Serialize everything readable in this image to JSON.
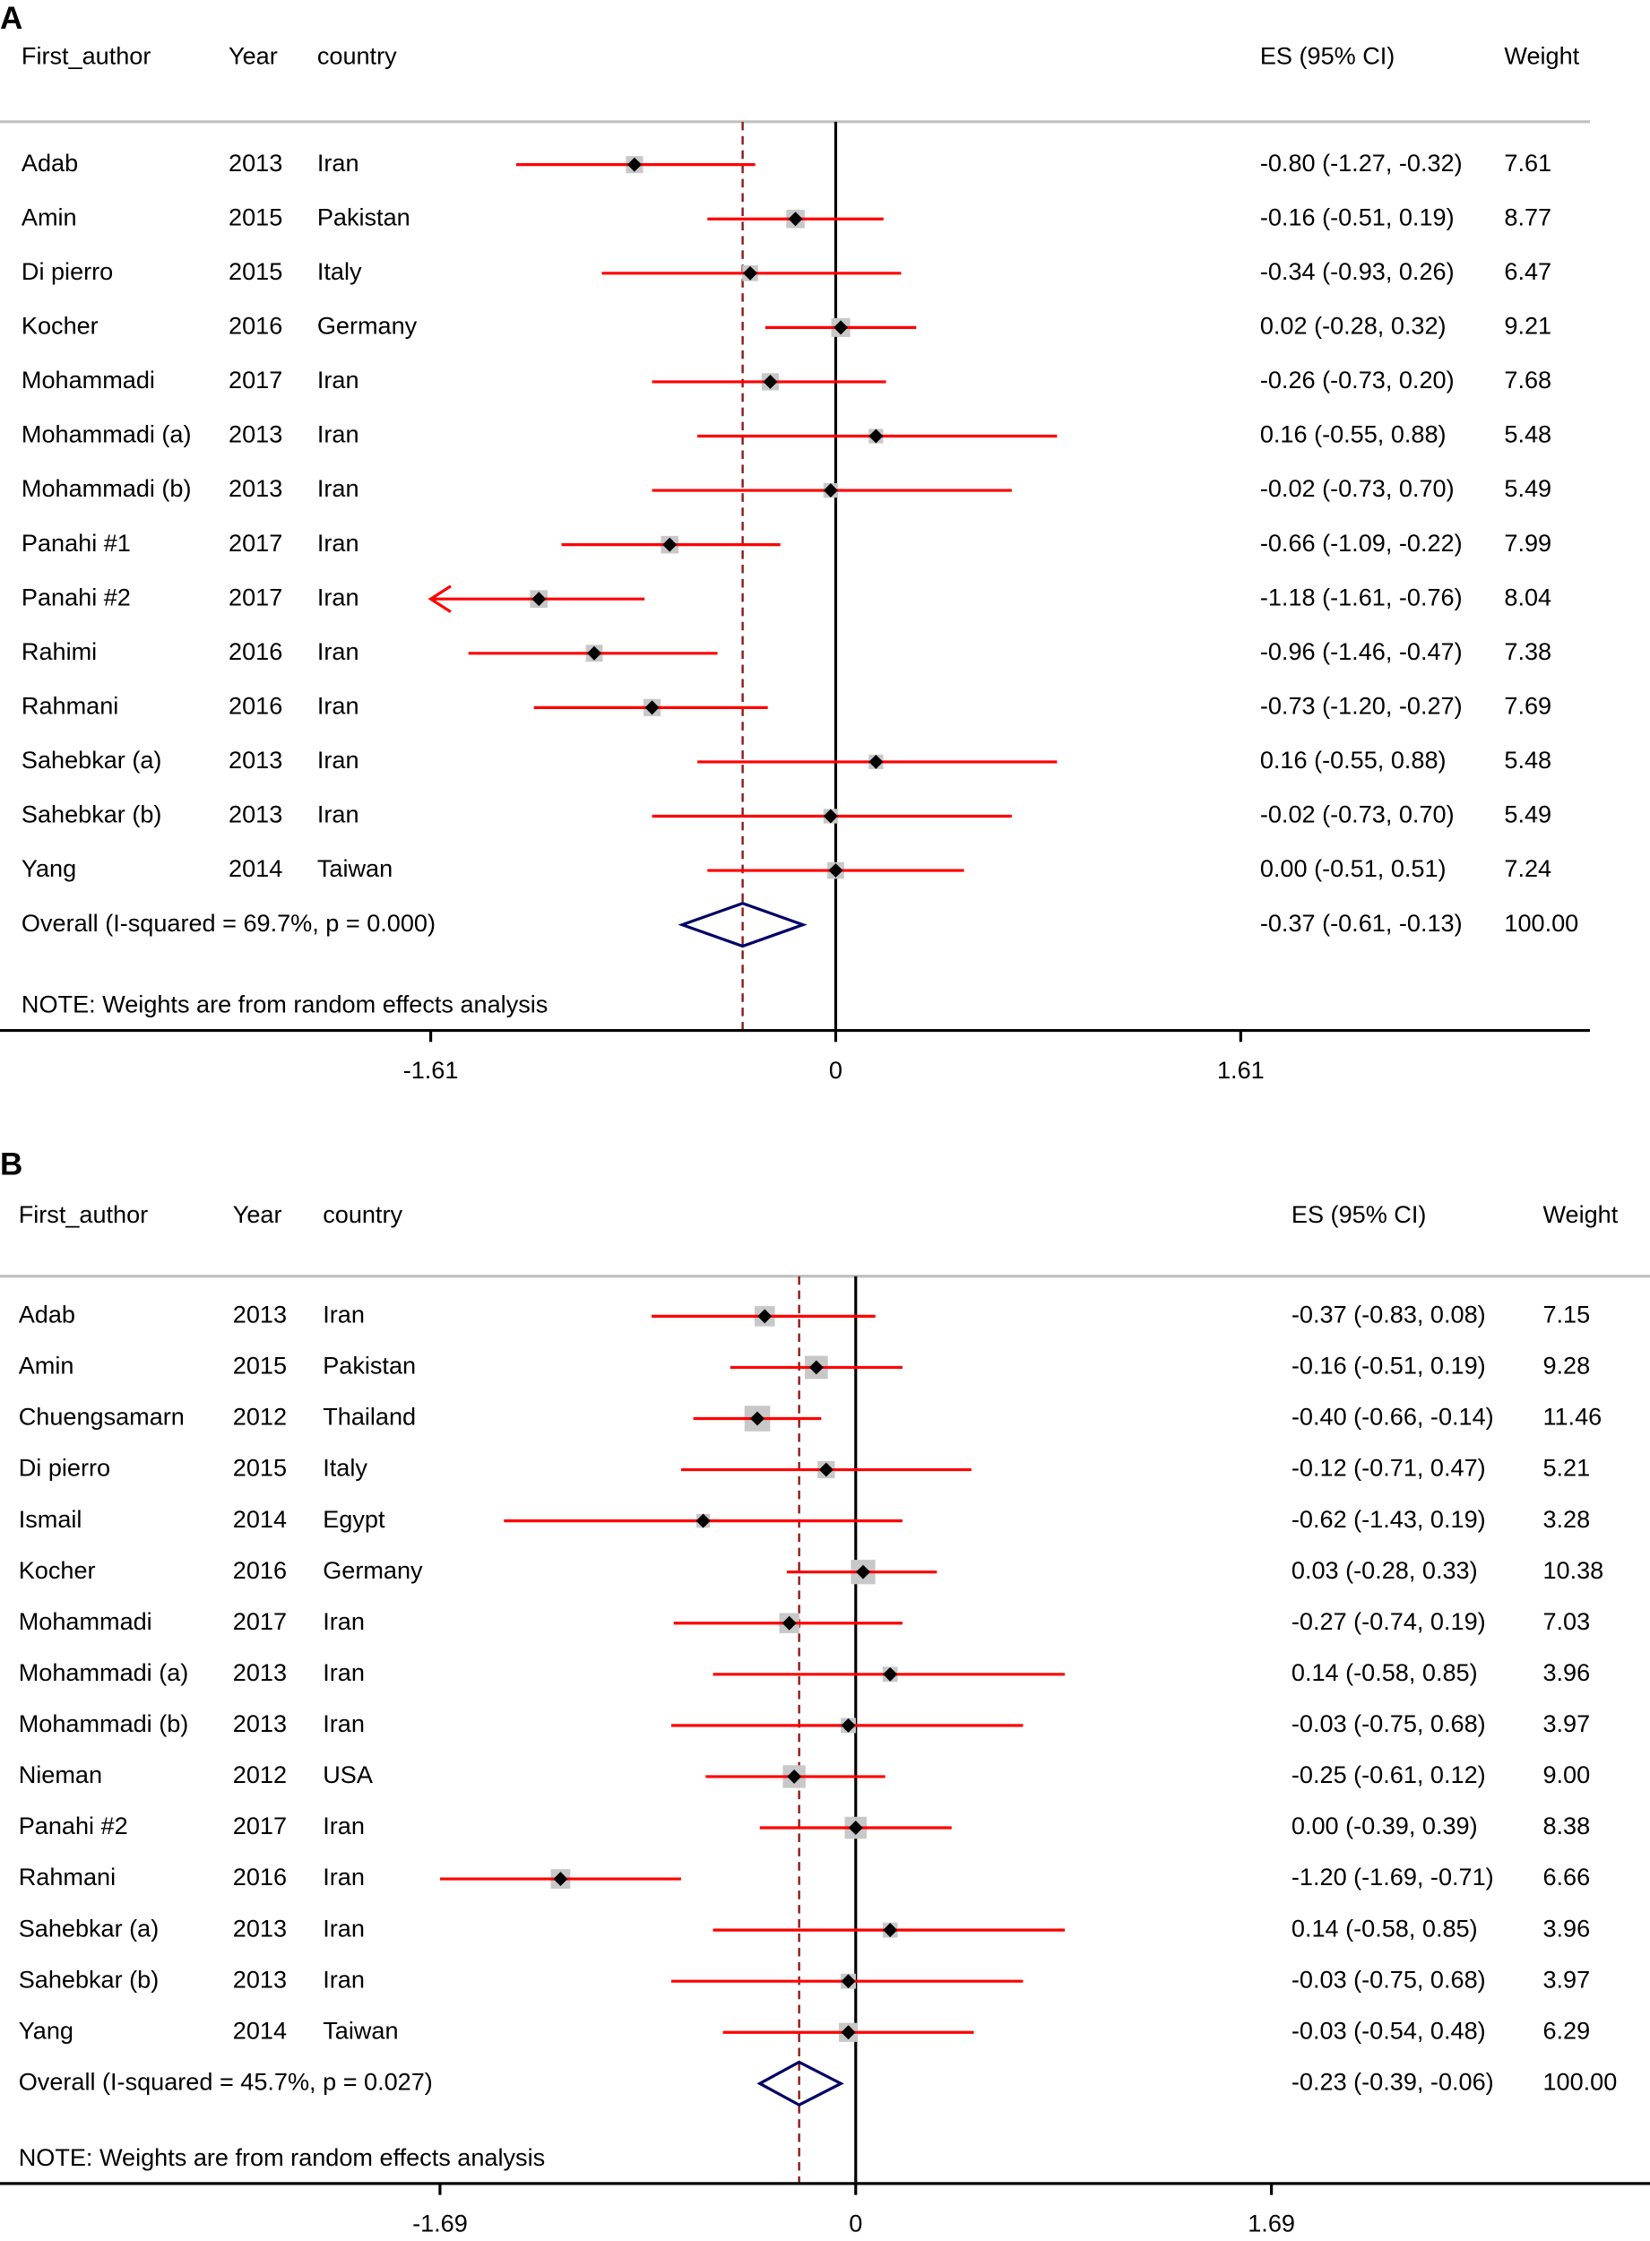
{
  "chart_data": [
    {
      "type": "forest",
      "panel_label": "A",
      "columns": {
        "author": "First_author",
        "year": "Year",
        "country": "country",
        "es": "ES (95% CI)",
        "weight": "Weight"
      },
      "rows": [
        {
          "author": "Adab",
          "year": "2013",
          "country": "Iran",
          "es": -0.8,
          "lo": -1.27,
          "hi": -0.32,
          "es_text": "-0.80 (-1.27, -0.32)",
          "weight": "7.61"
        },
        {
          "author": "Amin",
          "year": "2015",
          "country": "Pakistan",
          "es": -0.16,
          "lo": -0.51,
          "hi": 0.19,
          "es_text": "-0.16 (-0.51, 0.19)",
          "weight": "8.77"
        },
        {
          "author": "Di pierro",
          "year": "2015",
          "country": "Italy",
          "es": -0.34,
          "lo": -0.93,
          "hi": 0.26,
          "es_text": "-0.34 (-0.93, 0.26)",
          "weight": "6.47"
        },
        {
          "author": "Kocher",
          "year": "2016",
          "country": "Germany",
          "es": 0.02,
          "lo": -0.28,
          "hi": 0.32,
          "es_text": "0.02 (-0.28, 0.32)",
          "weight": "9.21"
        },
        {
          "author": "Mohammadi",
          "year": "2017",
          "country": "Iran",
          "es": -0.26,
          "lo": -0.73,
          "hi": 0.2,
          "es_text": "-0.26 (-0.73, 0.20)",
          "weight": "7.68"
        },
        {
          "author": "Mohammadi (a)",
          "year": "2013",
          "country": "Iran",
          "es": 0.16,
          "lo": -0.55,
          "hi": 0.88,
          "es_text": "0.16 (-0.55, 0.88)",
          "weight": "5.48"
        },
        {
          "author": "Mohammadi (b)",
          "year": "2013",
          "country": "Iran",
          "es": -0.02,
          "lo": -0.73,
          "hi": 0.7,
          "es_text": "-0.02 (-0.73, 0.70)",
          "weight": "5.49"
        },
        {
          "author": "Panahi #1",
          "year": "2017",
          "country": "Iran",
          "es": -0.66,
          "lo": -1.09,
          "hi": -0.22,
          "es_text": "-0.66 (-1.09, -0.22)",
          "weight": "7.99"
        },
        {
          "author": "Panahi #2",
          "year": "2017",
          "country": "Iran",
          "es": -1.18,
          "lo": -1.61,
          "hi": -0.76,
          "es_text": "-1.18 (-1.61, -0.76)",
          "weight": "8.04"
        },
        {
          "author": "Rahimi",
          "year": "2016",
          "country": "Iran",
          "es": -0.96,
          "lo": -1.46,
          "hi": -0.47,
          "es_text": "-0.96 (-1.46, -0.47)",
          "weight": "7.38"
        },
        {
          "author": "Rahmani",
          "year": "2016",
          "country": "Iran",
          "es": -0.73,
          "lo": -1.2,
          "hi": -0.27,
          "es_text": "-0.73 (-1.20, -0.27)",
          "weight": "7.69"
        },
        {
          "author": "Sahebkar (a)",
          "year": "2013",
          "country": "Iran",
          "es": 0.16,
          "lo": -0.55,
          "hi": 0.88,
          "es_text": "0.16 (-0.55, 0.88)",
          "weight": "5.48"
        },
        {
          "author": "Sahebkar (b)",
          "year": "2013",
          "country": "Iran",
          "es": -0.02,
          "lo": -0.73,
          "hi": 0.7,
          "es_text": "-0.02 (-0.73, 0.70)",
          "weight": "5.49"
        },
        {
          "author": "Yang",
          "year": "2014",
          "country": "Taiwan",
          "es": 0.0,
          "lo": -0.51,
          "hi": 0.51,
          "es_text": "0.00 (-0.51, 0.51)",
          "weight": "7.24"
        }
      ],
      "overall": {
        "label": "Overall  (I-squared = 69.7%, p = 0.000)",
        "es": -0.37,
        "lo": -0.61,
        "hi": -0.13,
        "es_text": "-0.37 (-0.61, -0.13)",
        "weight": "100.00"
      },
      "note": "NOTE: Weights are from random effects analysis",
      "xlim": [
        -1.61,
        1.61
      ],
      "ticks": [
        -1.61,
        0,
        1.61
      ],
      "tick_labels": [
        "-1.61",
        "0",
        "1.61"
      ]
    },
    {
      "type": "forest",
      "panel_label": "B",
      "columns": {
        "author": "First_author",
        "year": "Year",
        "country": "country",
        "es": "ES (95% CI)",
        "weight": "Weight"
      },
      "rows": [
        {
          "author": "Adab",
          "year": "2013",
          "country": "Iran",
          "es": -0.37,
          "lo": -0.83,
          "hi": 0.08,
          "es_text": "-0.37 (-0.83, 0.08)",
          "weight": "7.15"
        },
        {
          "author": "Amin",
          "year": "2015",
          "country": "Pakistan",
          "es": -0.16,
          "lo": -0.51,
          "hi": 0.19,
          "es_text": "-0.16 (-0.51, 0.19)",
          "weight": "9.28"
        },
        {
          "author": "Chuengsamarn",
          "year": "2012",
          "country": "Thailand",
          "es": -0.4,
          "lo": -0.66,
          "hi": -0.14,
          "es_text": "-0.40 (-0.66, -0.14)",
          "weight": "11.46"
        },
        {
          "author": "Di pierro",
          "year": "2015",
          "country": "Italy",
          "es": -0.12,
          "lo": -0.71,
          "hi": 0.47,
          "es_text": "-0.12 (-0.71, 0.47)",
          "weight": "5.21"
        },
        {
          "author": "Ismail",
          "year": "2014",
          "country": "Egypt",
          "es": -0.62,
          "lo": -1.43,
          "hi": 0.19,
          "es_text": "-0.62 (-1.43, 0.19)",
          "weight": "3.28"
        },
        {
          "author": "Kocher",
          "year": "2016",
          "country": "Germany",
          "es": 0.03,
          "lo": -0.28,
          "hi": 0.33,
          "es_text": "0.03 (-0.28, 0.33)",
          "weight": "10.38"
        },
        {
          "author": "Mohammadi",
          "year": "2017",
          "country": "Iran",
          "es": -0.27,
          "lo": -0.74,
          "hi": 0.19,
          "es_text": "-0.27 (-0.74, 0.19)",
          "weight": "7.03"
        },
        {
          "author": "Mohammadi (a)",
          "year": "2013",
          "country": "Iran",
          "es": 0.14,
          "lo": -0.58,
          "hi": 0.85,
          "es_text": "0.14 (-0.58, 0.85)",
          "weight": "3.96"
        },
        {
          "author": "Mohammadi (b)",
          "year": "2013",
          "country": "Iran",
          "es": -0.03,
          "lo": -0.75,
          "hi": 0.68,
          "es_text": "-0.03 (-0.75, 0.68)",
          "weight": "3.97"
        },
        {
          "author": "Nieman",
          "year": "2012",
          "country": "USA",
          "es": -0.25,
          "lo": -0.61,
          "hi": 0.12,
          "es_text": "-0.25 (-0.61, 0.12)",
          "weight": "9.00"
        },
        {
          "author": "Panahi #2",
          "year": "2017",
          "country": "Iran",
          "es": 0.0,
          "lo": -0.39,
          "hi": 0.39,
          "es_text": "0.00 (-0.39, 0.39)",
          "weight": "8.38"
        },
        {
          "author": "Rahmani",
          "year": "2016",
          "country": "Iran",
          "es": -1.2,
          "lo": -1.69,
          "hi": -0.71,
          "es_text": "-1.20 (-1.69, -0.71)",
          "weight": "6.66"
        },
        {
          "author": "Sahebkar (a)",
          "year": "2013",
          "country": "Iran",
          "es": 0.14,
          "lo": -0.58,
          "hi": 0.85,
          "es_text": "0.14 (-0.58, 0.85)",
          "weight": "3.96"
        },
        {
          "author": "Sahebkar (b)",
          "year": "2013",
          "country": "Iran",
          "es": -0.03,
          "lo": -0.75,
          "hi": 0.68,
          "es_text": "-0.03 (-0.75, 0.68)",
          "weight": "3.97"
        },
        {
          "author": "Yang",
          "year": "2014",
          "country": "Taiwan",
          "es": -0.03,
          "lo": -0.54,
          "hi": 0.48,
          "es_text": "-0.03 (-0.54, 0.48)",
          "weight": "6.29"
        }
      ],
      "overall": {
        "label": "Overall  (I-squared = 45.7%, p = 0.027)",
        "es": -0.23,
        "lo": -0.39,
        "hi": -0.06,
        "es_text": "-0.23 (-0.39, -0.06)",
        "weight": "100.00"
      },
      "note": "NOTE: Weights are from random effects analysis",
      "xlim": [
        -1.69,
        1.69
      ],
      "ticks": [
        -1.69,
        0,
        1.69
      ],
      "tick_labels": [
        "-1.69",
        "0",
        "1.69"
      ]
    }
  ],
  "colors": {
    "ci_line": "#ff0000",
    "box": "#c8c8c8",
    "point": "#000000",
    "diamond": "#000066",
    "dashed": "#8b1a1a",
    "rule": "#c0c0c0"
  }
}
